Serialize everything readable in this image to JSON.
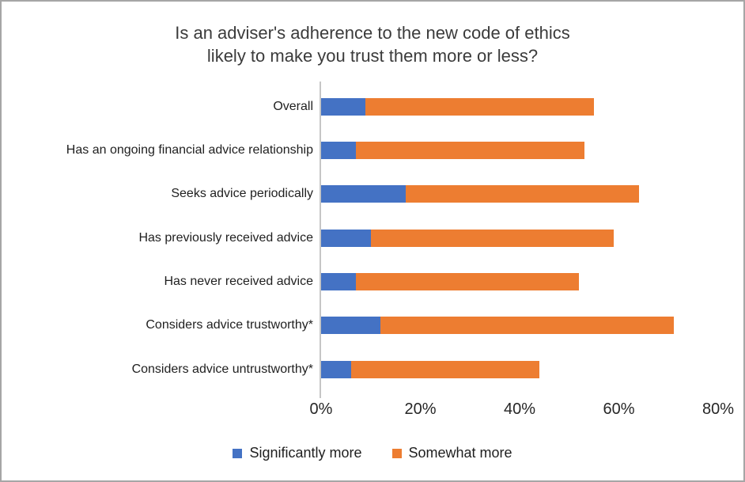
{
  "title": {
    "line1": "Is an adviser's adherence to the new code of ethics",
    "line2": "likely to make you trust them more or less?"
  },
  "colors": {
    "significantly_more": "#4472C4",
    "somewhat_more": "#ED7D31",
    "axis_line": "#C6C6C6",
    "border": "#A6A6A6"
  },
  "chart_data": {
    "type": "bar",
    "orientation": "horizontal",
    "stacked": true,
    "grid": false,
    "legend_position": "bottom",
    "title": "Is an adviser's adherence to the new code of ethics likely to make you trust them more or less?",
    "categories": [
      "Overall",
      "Has an ongoing financial advice relationship",
      "Seeks advice periodically",
      "Has previously received advice",
      "Has never received advice",
      "Considers advice trustworthy*",
      "Considers advice untrustworthy*"
    ],
    "series": [
      {
        "name": "Significantly more",
        "color": "#4472C4",
        "values": [
          9,
          7,
          17,
          10,
          7,
          12,
          6
        ]
      },
      {
        "name": "Somewhat more",
        "color": "#ED7D31",
        "values": [
          46,
          46,
          47,
          49,
          45,
          59,
          38
        ]
      }
    ],
    "stacked_totals": [
      55,
      53,
      64,
      59,
      52,
      71,
      44
    ],
    "x_ticks": [
      {
        "label": "0%",
        "value": 0
      },
      {
        "label": "20%",
        "value": 20
      },
      {
        "label": "40%",
        "value": 40
      },
      {
        "label": "60%",
        "value": 60
      },
      {
        "label": "80%",
        "value": 80
      }
    ],
    "xlim": [
      0,
      84
    ]
  }
}
